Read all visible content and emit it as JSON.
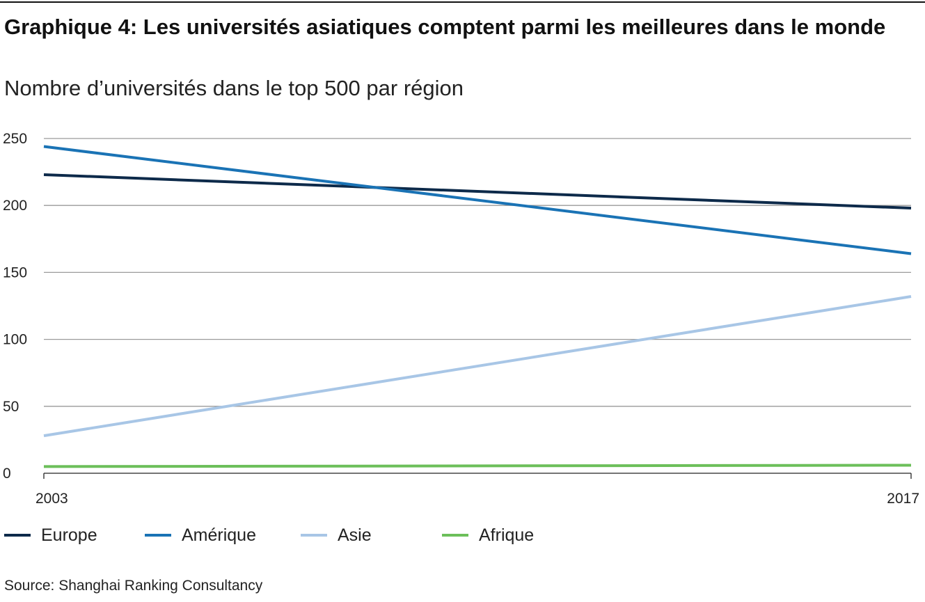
{
  "header": {
    "title": "Graphique 4: Les universités asiatiques comptent parmi les meilleures dans le monde",
    "subtitle": "Nombre d’universités dans le top 500 par région"
  },
  "chart_data": {
    "type": "line",
    "x": [
      2003,
      2017
    ],
    "x_tick_labels": [
      "2003",
      "2017"
    ],
    "ylim": [
      0,
      250
    ],
    "y_ticks": [
      0,
      50,
      100,
      150,
      200,
      250
    ],
    "grid": true,
    "legend_position": "bottom",
    "series": [
      {
        "name": "Europe",
        "color": "#0d2a4a",
        "values": [
          223,
          198
        ]
      },
      {
        "name": "Amérique",
        "color": "#1a73b5",
        "values": [
          244,
          164
        ]
      },
      {
        "name": "Asie",
        "color": "#a8c6e6",
        "values": [
          28,
          132
        ]
      },
      {
        "name": "Afrique",
        "color": "#6cbf5a",
        "values": [
          5,
          6
        ]
      }
    ]
  },
  "footer": {
    "source": "Source: Shanghai Ranking Consultancy"
  }
}
